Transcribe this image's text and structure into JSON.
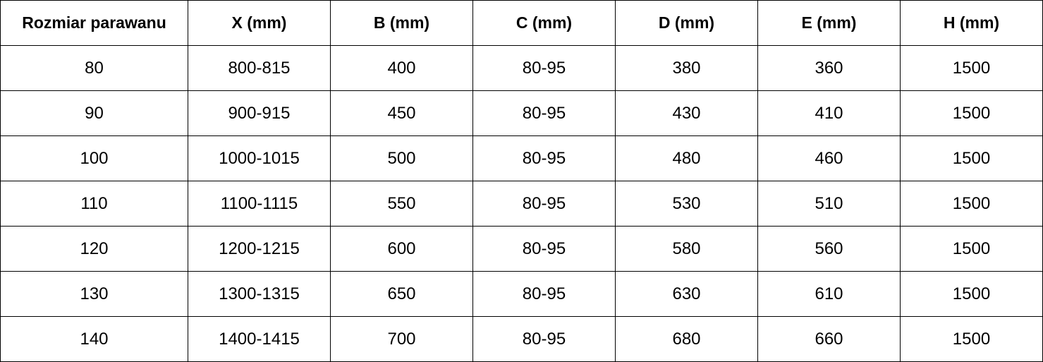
{
  "table": {
    "headers": [
      "Rozmiar parawanu",
      "X (mm)",
      "B (mm)",
      "C (mm)",
      "D (mm)",
      "E (mm)",
      "H (mm)"
    ],
    "rows": [
      [
        "80",
        "800-815",
        "400",
        "80-95",
        "380",
        "360",
        "1500"
      ],
      [
        "90",
        "900-915",
        "450",
        "80-95",
        "430",
        "410",
        "1500"
      ],
      [
        "100",
        "1000-1015",
        "500",
        "80-95",
        "480",
        "460",
        "1500"
      ],
      [
        "110",
        "1100-1115",
        "550",
        "80-95",
        "530",
        "510",
        "1500"
      ],
      [
        "120",
        "1200-1215",
        "600",
        "80-95",
        "580",
        "560",
        "1500"
      ],
      [
        "130",
        "1300-1315",
        "650",
        "80-95",
        "630",
        "610",
        "1500"
      ],
      [
        "140",
        "1400-1415",
        "700",
        "80-95",
        "680",
        "660",
        "1500"
      ]
    ]
  }
}
